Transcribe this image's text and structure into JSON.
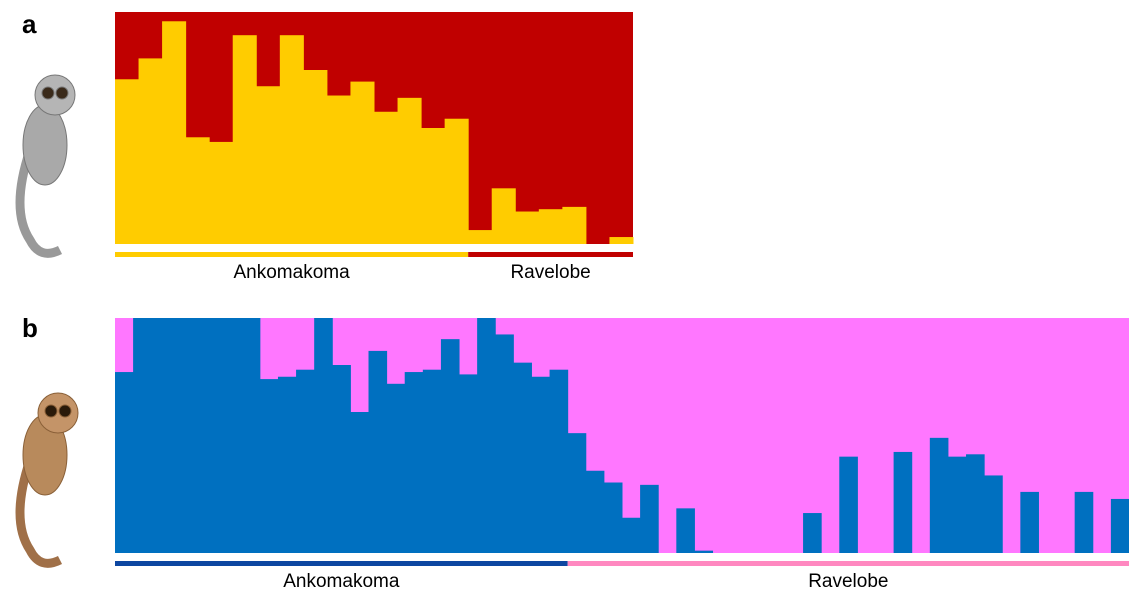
{
  "chart_data": [
    {
      "type": "bar",
      "panel": "a",
      "ylim": [
        0,
        1
      ],
      "bar_color": "#ffcc00",
      "background_color": "#c00000",
      "groups": [
        {
          "name": "Ankomakoma",
          "color": "#ffcc00",
          "values": [
            0.71,
            0.8,
            0.96,
            0.46,
            0.44,
            0.9,
            0.68,
            0.9,
            0.75,
            0.64,
            0.7,
            0.57,
            0.63,
            0.5,
            0.54
          ]
        },
        {
          "name": "Ravelobe",
          "color": "#c00000",
          "values": [
            0.06,
            0.24,
            0.14,
            0.15,
            0.16,
            0.0,
            0.03
          ]
        }
      ]
    },
    {
      "type": "bar",
      "panel": "b",
      "ylim": [
        0,
        1
      ],
      "bar_color": "#0070c0",
      "background_color": "#ff77ff",
      "groups": [
        {
          "name": "Ankomakoma",
          "color": "#0d47a1",
          "values": [
            0.77,
            1,
            1,
            1,
            1,
            1,
            1,
            1,
            0.74,
            0.75,
            0.78,
            1,
            0.8,
            0.6,
            0.86,
            0.72,
            0.77,
            0.78,
            0.91,
            0.76,
            1,
            0.93,
            0.81,
            0.75,
            0.78
          ]
        },
        {
          "name": "Ravelobe",
          "color": "#ff88c0",
          "values": [
            0.51,
            0.35,
            0.3,
            0.15,
            0.29,
            0,
            0.19,
            0.01,
            0,
            0,
            0,
            0,
            0,
            0.17,
            0,
            0.41,
            0,
            0,
            0.43,
            0,
            0.49,
            0.41,
            0.42,
            0.33,
            0,
            0.26,
            0,
            0,
            0.26,
            0,
            0.23
          ]
        }
      ]
    }
  ]
}
